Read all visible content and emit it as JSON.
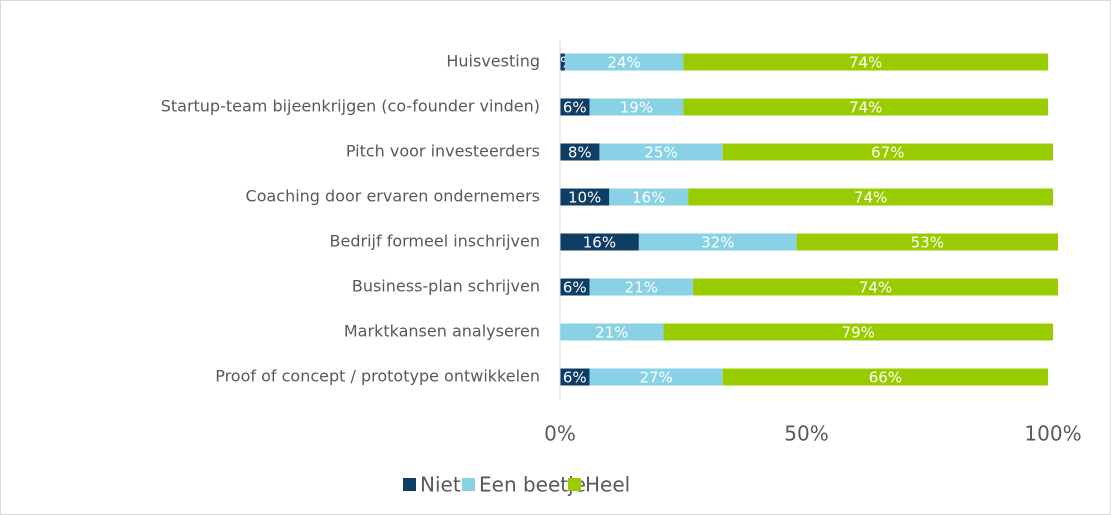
{
  "chart_data": {
    "type": "stacked-bar-horizontal",
    "categories": [
      "Huisvesting",
      "Startup-team bijeenkrijgen (co-founder vinden)",
      "Pitch voor investeerders",
      "Coaching door ervaren ondernemers",
      "Bedrijf formeel inschrijven",
      "Business-plan schrijven",
      "Marktkansen analyseren",
      "Proof of concept / prototype ontwikkelen"
    ],
    "series": [
      {
        "name": "Niet",
        "color": "#0e3d66",
        "values": [
          1,
          6,
          8,
          10,
          16,
          6,
          0,
          6
        ],
        "value_labels": [
          "1%",
          "6%",
          "8%",
          "10%",
          "16%",
          "6%",
          null,
          "6%"
        ]
      },
      {
        "name": "Een beetje",
        "color": "#89d1e5",
        "values": [
          24,
          19,
          25,
          16,
          32,
          21,
          21,
          27
        ],
        "value_labels": [
          "24%",
          "19%",
          "25%",
          "16%",
          "32%",
          "21%",
          "21%",
          "27%"
        ]
      },
      {
        "name": "Heel",
        "color": "#99cc00",
        "values": [
          74,
          74,
          67,
          74,
          53,
          74,
          79,
          66
        ],
        "value_labels": [
          "74%",
          "74%",
          "67%",
          "74%",
          "53%",
          "74%",
          "79%",
          "66%"
        ]
      }
    ],
    "xlim": [
      0,
      100
    ],
    "xticks": [
      {
        "value": 0,
        "label": "0%"
      },
      {
        "value": 50,
        "label": "50%"
      },
      {
        "value": 100,
        "label": "100%"
      }
    ],
    "grid": false
  }
}
